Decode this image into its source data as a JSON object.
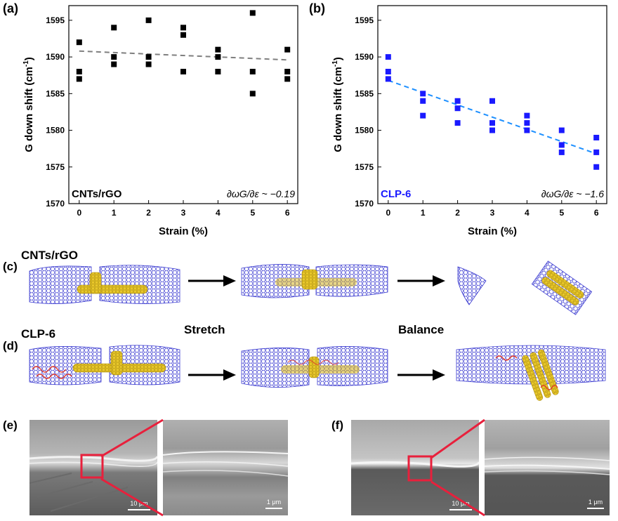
{
  "colors": {
    "series_a": "#000000",
    "series_b": "#1a1aff",
    "fit_a": "#7f7f7f",
    "fit_b": "#1e90ff",
    "graphene": "#3a3ad0",
    "cnt": "#e8c72a",
    "polymer": "#e03a2a",
    "zoom_box": "#e8203c"
  },
  "panels": {
    "a": {
      "letter": "(a)"
    },
    "b": {
      "letter": "(b)"
    },
    "c": {
      "letter": "(c)",
      "title": "CNTs/rGO"
    },
    "d": {
      "letter": "(d)",
      "title": "CLP-6"
    },
    "e": {
      "letter": "(e)",
      "scalebar_left": "10 μm",
      "scalebar_right": "1 μm"
    },
    "f": {
      "letter": "(f)",
      "scalebar_left": "10 μm",
      "scalebar_right": "1 μm"
    }
  },
  "scheme": {
    "stretch_label": "Stretch",
    "balance_label": "Balance"
  },
  "chart_data": [
    {
      "type": "scatter",
      "title": "",
      "xlabel": "Strain (%)",
      "ylabel": "G down shift (cm-1)",
      "xlim": [
        -0.3,
        6.3
      ],
      "ylim": [
        1570,
        1597
      ],
      "xticks": [
        0,
        1,
        2,
        3,
        4,
        5,
        6
      ],
      "yticks": [
        1570,
        1575,
        1580,
        1585,
        1590,
        1595
      ],
      "inner_label": "CNTs/rGO",
      "annotation": "∂ωG/∂ε ~ −0.19",
      "series": [
        {
          "points": [
            [
              0,
              1592
            ],
            [
              0,
              1588
            ],
            [
              0,
              1587
            ],
            [
              1,
              1594
            ],
            [
              1,
              1590
            ],
            [
              1,
              1589
            ],
            [
              2,
              1595
            ],
            [
              2,
              1590
            ],
            [
              2,
              1589
            ],
            [
              3,
              1594
            ],
            [
              3,
              1593
            ],
            [
              3,
              1588
            ],
            [
              4,
              1591
            ],
            [
              4,
              1590
            ],
            [
              4,
              1588
            ],
            [
              5,
              1596
            ],
            [
              5,
              1588
            ],
            [
              5,
              1585
            ],
            [
              6,
              1591
            ],
            [
              6,
              1588
            ],
            [
              6,
              1587
            ]
          ]
        }
      ],
      "fit_line": {
        "x": [
          0,
          6
        ],
        "y": [
          1590.8,
          1589.6
        ]
      }
    },
    {
      "type": "scatter",
      "title": "",
      "xlabel": "Strain (%)",
      "ylabel": "G down shift (cm-1)",
      "xlim": [
        -0.3,
        6.3
      ],
      "ylim": [
        1570,
        1597
      ],
      "xticks": [
        0,
        1,
        2,
        3,
        4,
        5,
        6
      ],
      "yticks": [
        1570,
        1575,
        1580,
        1585,
        1590,
        1595
      ],
      "inner_label": "CLP-6",
      "annotation": "∂ωG/∂ε ~ −1.6",
      "series": [
        {
          "points": [
            [
              0,
              1590
            ],
            [
              0,
              1588
            ],
            [
              0,
              1587
            ],
            [
              1,
              1585
            ],
            [
              1,
              1584
            ],
            [
              1,
              1582
            ],
            [
              2,
              1584
            ],
            [
              2,
              1583
            ],
            [
              2,
              1581
            ],
            [
              3,
              1584
            ],
            [
              3,
              1581
            ],
            [
              3,
              1580
            ],
            [
              4,
              1582
            ],
            [
              4,
              1581
            ],
            [
              4,
              1580
            ],
            [
              5,
              1580
            ],
            [
              5,
              1578
            ],
            [
              5,
              1577
            ],
            [
              6,
              1579
            ],
            [
              6,
              1577
            ],
            [
              6,
              1575
            ]
          ]
        }
      ],
      "fit_line": {
        "x": [
          0,
          6
        ],
        "y": [
          1586.8,
          1576.8
        ]
      }
    }
  ]
}
